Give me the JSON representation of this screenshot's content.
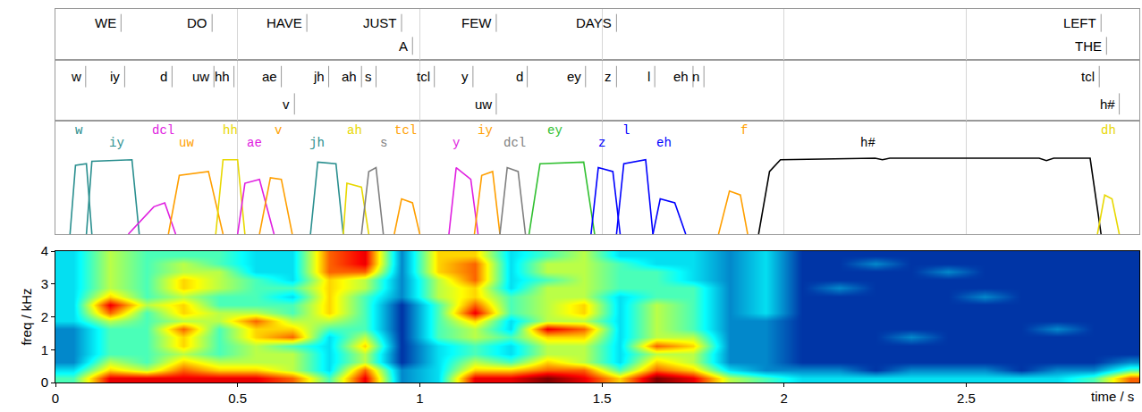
{
  "chart_data": {
    "type": "spectrogram",
    "xlim": [
      0,
      2.975
    ],
    "xticks": [
      0,
      0.5,
      1,
      1.5,
      2,
      2.5
    ],
    "x_label": "time / s",
    "grid": true,
    "words": {
      "lines": [
        [
          {
            "text": "WE",
            "end": 0.18
          },
          {
            "text": "DO",
            "end": 0.43
          },
          {
            "text": "HAVE",
            "end": 0.69
          },
          {
            "text": "JUST",
            "end": 0.95
          },
          {
            "text": "FEW",
            "end": 1.21
          },
          {
            "text": "DAYS",
            "end": 1.54
          },
          {
            "text": "LEFT",
            "end": 2.87
          }
        ],
        [
          {
            "text": "A",
            "end": 0.98
          },
          {
            "text": "THE",
            "end": 2.885
          }
        ]
      ]
    },
    "phones": {
      "lines": [
        [
          {
            "text": "w",
            "end": 0.083
          },
          {
            "text": "iy",
            "end": 0.19
          },
          {
            "text": "d",
            "end": 0.32
          },
          {
            "text": "uw",
            "end": 0.435
          },
          {
            "text": "hh",
            "end": 0.49
          },
          {
            "text": "ae",
            "end": 0.62
          },
          {
            "text": "jh",
            "end": 0.75
          },
          {
            "text": "ah",
            "end": 0.84
          },
          {
            "text": "s",
            "end": 0.88
          },
          {
            "text": "tcl",
            "end": 1.04
          },
          {
            "text": "y",
            "end": 1.146
          },
          {
            "text": "d",
            "end": 1.295
          },
          {
            "text": "ey",
            "end": 1.455
          },
          {
            "text": "z",
            "end": 1.54
          },
          {
            "text": "l",
            "end": 1.645
          },
          {
            "text": "eh",
            "end": 1.75
          },
          {
            "text": "n",
            "end": 1.78
          },
          {
            "text": "tcl",
            "end": 2.865
          }
        ],
        [
          {
            "text": "v",
            "end": 0.656
          },
          {
            "text": "uw",
            "end": 1.21
          },
          {
            "text": "h#",
            "end": 2.92
          }
        ]
      ]
    },
    "posteriors": {
      "type": "line",
      "ylim": [
        0,
        1.45
      ],
      "tick_labels": false,
      "series": [
        {
          "name": "w",
          "color": "#2a8f8f",
          "label_at": 0.064,
          "x": [
            0.04,
            0.055,
            0.085,
            0.1
          ],
          "values": [
            0,
            0.88,
            0.9,
            0
          ]
        },
        {
          "name": "iy",
          "color": "#2a8f8f",
          "label_at": 0.167,
          "x": [
            0.085,
            0.1,
            0.21,
            0.23
          ],
          "values": [
            0,
            0.93,
            0.95,
            0
          ]
        },
        {
          "name": "dcl",
          "color": "#e020e0",
          "label_at": 0.296,
          "x": [
            0.2,
            0.27,
            0.3,
            0.33
          ],
          "values": [
            0,
            0.35,
            0.4,
            0
          ]
        },
        {
          "name": "uw",
          "color": "#ff9f00",
          "label_at": 0.36,
          "x": [
            0.31,
            0.34,
            0.42,
            0.46
          ],
          "values": [
            0,
            0.75,
            0.8,
            0
          ]
        },
        {
          "name": "hh",
          "color": "#e8d800",
          "label_at": 0.48,
          "x": [
            0.44,
            0.46,
            0.5,
            0.52
          ],
          "values": [
            0,
            0.95,
            0.95,
            0
          ]
        },
        {
          "name": "ae",
          "color": "#e020e0",
          "label_at": 0.546,
          "x": [
            0.5,
            0.52,
            0.56,
            0.6
          ],
          "values": [
            0,
            0.65,
            0.7,
            0
          ]
        },
        {
          "name": "v",
          "color": "#ff9f00",
          "label_at": 0.61,
          "x": [
            0.56,
            0.59,
            0.62,
            0.65
          ],
          "values": [
            0,
            0.72,
            0.7,
            0
          ]
        },
        {
          "name": "jh",
          "color": "#2a8f8f",
          "label_at": 0.717,
          "x": [
            0.7,
            0.72,
            0.77,
            0.79
          ],
          "values": [
            0,
            0.92,
            0.9,
            0
          ]
        },
        {
          "name": "ah",
          "color": "#e8d800",
          "label_at": 0.82,
          "x": [
            0.79,
            0.8,
            0.84,
            0.86
          ],
          "values": [
            0,
            0.65,
            0.6,
            0
          ]
        },
        {
          "name": "s",
          "color": "#808080",
          "label_at": 0.9,
          "x": [
            0.84,
            0.86,
            0.88,
            0.9
          ],
          "values": [
            0,
            0.8,
            0.85,
            0
          ]
        },
        {
          "name": "tcl",
          "color": "#ff9f00",
          "label_at": 0.96,
          "x": [
            0.93,
            0.95,
            0.98,
            1.0
          ],
          "values": [
            0,
            0.45,
            0.4,
            0
          ]
        },
        {
          "name": "y",
          "color": "#e020e0",
          "label_at": 1.1,
          "x": [
            1.08,
            1.1,
            1.14,
            1.16
          ],
          "values": [
            0,
            0.85,
            0.7,
            0
          ]
        },
        {
          "name": "iy",
          "color": "#ff9f00",
          "label_at": 1.18,
          "x": [
            1.15,
            1.17,
            1.2,
            1.22
          ],
          "values": [
            0,
            0.75,
            0.8,
            0
          ]
        },
        {
          "name": "dcl",
          "color": "#808080",
          "label_at": 1.26,
          "x": [
            1.22,
            1.24,
            1.27,
            1.29
          ],
          "values": [
            0,
            0.85,
            0.8,
            0
          ]
        },
        {
          "name": "ey",
          "color": "#30c030",
          "label_at": 1.37,
          "x": [
            1.3,
            1.33,
            1.45,
            1.48
          ],
          "values": [
            0,
            0.9,
            0.92,
            0
          ]
        },
        {
          "name": "z",
          "color": "#0000ff",
          "label_at": 1.5,
          "x": [
            1.47,
            1.49,
            1.53,
            1.55
          ],
          "values": [
            0,
            0.85,
            0.8,
            0
          ]
        },
        {
          "name": "l",
          "color": "#0000ff",
          "label_at": 1.567,
          "x": [
            1.54,
            1.56,
            1.62,
            1.64
          ],
          "values": [
            0,
            0.9,
            0.95,
            0
          ]
        },
        {
          "name": "eh",
          "color": "#0000ff",
          "label_at": 1.67,
          "x": [
            1.64,
            1.66,
            1.7,
            1.73
          ],
          "values": [
            0,
            0.45,
            0.4,
            0
          ]
        },
        {
          "name": "f",
          "color": "#ff9f00",
          "label_at": 1.89,
          "x": [
            1.82,
            1.85,
            1.88,
            1.9
          ],
          "values": [
            0,
            0.55,
            0.5,
            0
          ]
        },
        {
          "name": "h#",
          "color": "#000000",
          "label_at": 2.23,
          "x": [
            1.93,
            1.96,
            1.99,
            2.25,
            2.27,
            2.29,
            2.7,
            2.72,
            2.74,
            2.84,
            2.87
          ],
          "values": [
            0,
            0.8,
            0.95,
            0.97,
            0.95,
            0.97,
            0.97,
            0.94,
            0.97,
            0.97,
            0
          ]
        },
        {
          "name": "dh",
          "color": "#e8d800",
          "label_at": 2.89,
          "x": [
            2.86,
            2.88,
            2.9,
            2.92
          ],
          "values": [
            0,
            0.5,
            0.45,
            0
          ]
        }
      ]
    },
    "spectrogram": {
      "type": "heatmap",
      "y_label": "freq / kHz",
      "ylim": [
        0,
        4
      ],
      "yticks": [
        0,
        1,
        2,
        3,
        4
      ],
      "zlim": [
        0,
        9
      ],
      "x": [
        0.05,
        0.15,
        0.25,
        0.35,
        0.45,
        0.55,
        0.65,
        0.75,
        0.85,
        0.95,
        1.05,
        1.15,
        1.25,
        1.35,
        1.45,
        1.55,
        1.65,
        1.75,
        1.85,
        1.95,
        2.05,
        2.15,
        2.25,
        2.35,
        2.45,
        2.55,
        2.65,
        2.75,
        2.85,
        2.95
      ],
      "y": [
        0.125,
        0.375,
        0.625,
        0.875,
        1.125,
        1.375,
        1.625,
        1.875,
        2.125,
        2.375,
        2.625,
        2.875,
        3.125,
        3.375,
        3.625,
        3.875
      ],
      "cells": [
        [
          4,
          3,
          2,
          2,
          2,
          2,
          2,
          3,
          3,
          3,
          3,
          3,
          3,
          3,
          3,
          3
        ],
        [
          8,
          6,
          5,
          4,
          4,
          4,
          4,
          5,
          7,
          8,
          6,
          5,
          5,
          5,
          5,
          5
        ],
        [
          8,
          5,
          4,
          4,
          4,
          4,
          4,
          4,
          4,
          5,
          4,
          4,
          4,
          4,
          4,
          4
        ],
        [
          8,
          7,
          6,
          5,
          6,
          6,
          7,
          5,
          6,
          6,
          5,
          6,
          6,
          5,
          5,
          4
        ],
        [
          8,
          6,
          5,
          4,
          4,
          4,
          4,
          5,
          5,
          4,
          4,
          5,
          5,
          5,
          4,
          4
        ],
        [
          8,
          6,
          5,
          5,
          5,
          6,
          6,
          7,
          5,
          4,
          4,
          4,
          4,
          3,
          3,
          3
        ],
        [
          7,
          5,
          5,
          5,
          4,
          7,
          6,
          5,
          4,
          4,
          3,
          4,
          3,
          3,
          3,
          3
        ],
        [
          4,
          3,
          3,
          3,
          3,
          3,
          4,
          5,
          6,
          6,
          6,
          6,
          6,
          7,
          7,
          7
        ],
        [
          8,
          7,
          5,
          5,
          6,
          5,
          4,
          4,
          4,
          4,
          4,
          5,
          5,
          7,
          8,
          8
        ],
        [
          2,
          2,
          1,
          1,
          1,
          1,
          1,
          1,
          1,
          1,
          2,
          2,
          2,
          2,
          2,
          2
        ],
        [
          3,
          3,
          3,
          3,
          3,
          4,
          4,
          4,
          4,
          4,
          5,
          5,
          5,
          6,
          6,
          6
        ],
        [
          8,
          6,
          5,
          4,
          4,
          5,
          5,
          6,
          8,
          7,
          6,
          6,
          7,
          7,
          7,
          6
        ],
        [
          8,
          6,
          4,
          3,
          3,
          4,
          3,
          3,
          4,
          4,
          4,
          3,
          3,
          3,
          3,
          3
        ],
        [
          9,
          7,
          6,
          5,
          5,
          6,
          8,
          5,
          5,
          5,
          5,
          5,
          4,
          5,
          5,
          4
        ],
        [
          8,
          7,
          5,
          5,
          5,
          6,
          7,
          5,
          6,
          6,
          5,
          5,
          5,
          5,
          5,
          5
        ],
        [
          6,
          4,
          3,
          3,
          3,
          3,
          3,
          3,
          3,
          3,
          3,
          4,
          4,
          4,
          4,
          3
        ],
        [
          9,
          7,
          6,
          5,
          7,
          5,
          5,
          5,
          5,
          5,
          4,
          4,
          4,
          4,
          3,
          3
        ],
        [
          8,
          6,
          5,
          5,
          6,
          5,
          4,
          4,
          4,
          4,
          4,
          4,
          3,
          3,
          3,
          3
        ],
        [
          5,
          3,
          2,
          2,
          2,
          2,
          2,
          2,
          2,
          2,
          2,
          2,
          2,
          2,
          2,
          2
        ],
        [
          4,
          2,
          2,
          2,
          2,
          2,
          2,
          2,
          3,
          3,
          3,
          3,
          3,
          3,
          3,
          3
        ],
        [
          3,
          2,
          1,
          1,
          1,
          1,
          1,
          1,
          1,
          1,
          1,
          1,
          1,
          1,
          1,
          1
        ],
        [
          3,
          2,
          1,
          1,
          1,
          1,
          1,
          1,
          1,
          1,
          1,
          2,
          1,
          1,
          1,
          1
        ],
        [
          3,
          1,
          1,
          1,
          1,
          1,
          1,
          1,
          1,
          1,
          1,
          1,
          1,
          1,
          2,
          1
        ],
        [
          3,
          2,
          1,
          1,
          1,
          2,
          1,
          1,
          1,
          1,
          1,
          1,
          1,
          1,
          1,
          1
        ],
        [
          3,
          2,
          1,
          1,
          1,
          1,
          1,
          1,
          1,
          1,
          1,
          1,
          1,
          2,
          1,
          1
        ],
        [
          3,
          2,
          1,
          1,
          1,
          1,
          1,
          1,
          1,
          1,
          2,
          1,
          1,
          1,
          1,
          1
        ],
        [
          3,
          1,
          1,
          1,
          1,
          1,
          1,
          1,
          1,
          1,
          1,
          1,
          1,
          1,
          1,
          1
        ],
        [
          3,
          2,
          1,
          1,
          1,
          1,
          2,
          1,
          1,
          1,
          1,
          1,
          1,
          1,
          1,
          1
        ],
        [
          4,
          2,
          1,
          1,
          1,
          1,
          1,
          1,
          1,
          1,
          1,
          1,
          1,
          1,
          1,
          1
        ],
        [
          7,
          4,
          2,
          1,
          1,
          1,
          1,
          1,
          1,
          1,
          1,
          1,
          1,
          1,
          1,
          1
        ]
      ]
    }
  }
}
